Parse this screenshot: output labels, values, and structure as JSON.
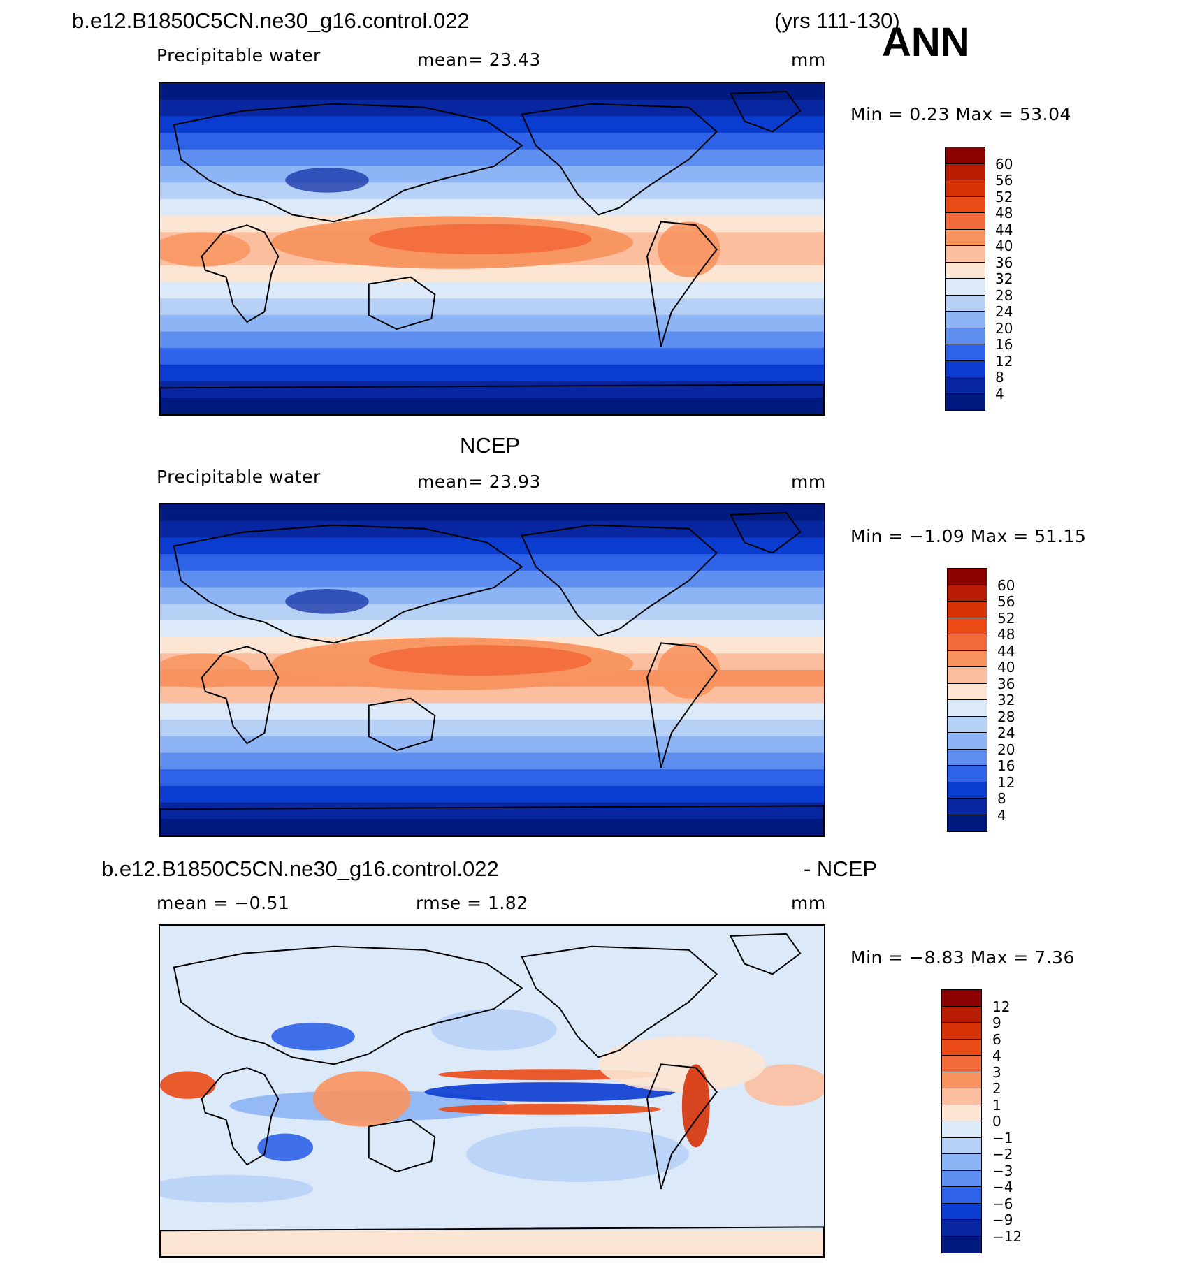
{
  "header": {
    "case_title": "b.e12.B1850C5CN.ne30_g16.control.022",
    "years": "(yrs 111-130)",
    "season": "ANN"
  },
  "panels": [
    {
      "title": "",
      "variable": "Precipitable water",
      "stat1": "mean=   23.43",
      "stat2": "",
      "units": "mm",
      "minmax": "Min =    0.23  Max =   53.04",
      "colorbar": {
        "labels": [
          "60",
          "56",
          "52",
          "48",
          "44",
          "40",
          "36",
          "32",
          "28",
          "24",
          "20",
          "16",
          "12",
          "8",
          "4"
        ],
        "colors": [
          "#8b0000",
          "#b81d04",
          "#d63208",
          "#ea4a16",
          "#f36a3a",
          "#f8935f",
          "#fbbf9f",
          "#fde5d3",
          "#dce9f8",
          "#b7d1f6",
          "#8db4f4",
          "#5e8ff0",
          "#2e63e8",
          "#0a3cd0",
          "#0826a0",
          "#001a80"
        ]
      },
      "field": "model"
    },
    {
      "title": "NCEP",
      "variable": "Precipitable water",
      "stat1": "mean=   23.93",
      "stat2": "",
      "units": "mm",
      "minmax": "Min =  −1.09  Max =   51.15",
      "colorbar": {
        "labels": [
          "60",
          "56",
          "52",
          "48",
          "44",
          "40",
          "36",
          "32",
          "28",
          "24",
          "20",
          "16",
          "12",
          "8",
          "4"
        ],
        "colors": [
          "#8b0000",
          "#b81d04",
          "#d63208",
          "#ea4a16",
          "#f36a3a",
          "#f8935f",
          "#fbbf9f",
          "#fde5d3",
          "#dce9f8",
          "#b7d1f6",
          "#8db4f4",
          "#5e8ff0",
          "#2e63e8",
          "#0a3cd0",
          "#0826a0",
          "#001a80"
        ]
      },
      "field": "obs"
    },
    {
      "title": "b.e12.B1850C5CN.ne30_g16.control.022",
      "title_right": "- NCEP",
      "variable": "mean =   −0.51",
      "stat1": "rmse =    1.82",
      "stat2": "",
      "units": "mm",
      "minmax": "Min =  −8.83  Max =    7.36",
      "colorbar": {
        "labels": [
          "12",
          "9",
          "6",
          "4",
          "3",
          "2",
          "1",
          "0",
          "−1",
          "−2",
          "−3",
          "−4",
          "−6",
          "−9",
          "−12"
        ],
        "colors": [
          "#8b0000",
          "#b81d04",
          "#d63208",
          "#ea4a16",
          "#f36a3a",
          "#f8935f",
          "#fbbf9f",
          "#fde5d3",
          "#dce9f8",
          "#b7d1f6",
          "#8db4f4",
          "#5e8ff0",
          "#2e63e8",
          "#0a3cd0",
          "#0826a0",
          "#001a80"
        ]
      },
      "field": "diff"
    }
  ]
}
